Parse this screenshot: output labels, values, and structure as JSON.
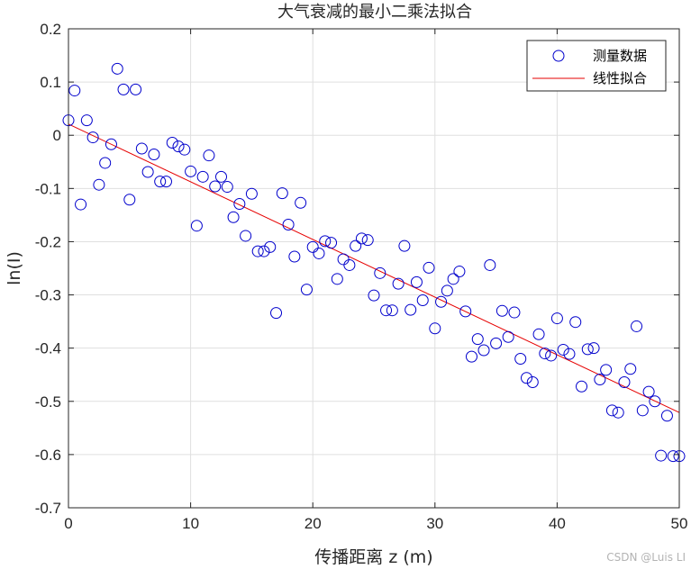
{
  "chart_data": {
    "type": "scatter",
    "title": "大气衰减的最小二乘法拟合",
    "xlabel": "传播距离 z (m)",
    "ylabel": "ln(I)",
    "xlim": [
      0,
      50
    ],
    "ylim": [
      -0.7,
      0.2
    ],
    "xticks": [
      0,
      10,
      20,
      30,
      40,
      50
    ],
    "yticks": [
      0.2,
      0.1,
      0,
      -0.1,
      -0.2,
      -0.3,
      -0.4,
      -0.5,
      -0.6,
      -0.7
    ],
    "xtick_labels": [
      "0",
      "10",
      "20",
      "30",
      "40",
      "50"
    ],
    "ytick_labels": [
      "0.2",
      "0.1",
      "0",
      "-0.1",
      "-0.2",
      "-0.3",
      "-0.4",
      "-0.5",
      "-0.6",
      "-0.7"
    ],
    "grid": true,
    "legend_position": "top-right",
    "series": [
      {
        "name": "测量数据",
        "kind": "scatter",
        "marker": "circle",
        "color": "#0000cc",
        "x": [
          0.0,
          0.5,
          1.0,
          1.5,
          2.0,
          2.5,
          3.0,
          3.5,
          4.0,
          4.5,
          5.0,
          5.5,
          6.0,
          6.5,
          7.0,
          7.5,
          8.0,
          8.5,
          9.0,
          9.5,
          10.0,
          10.5,
          11.0,
          11.5,
          12.0,
          12.5,
          13.0,
          13.5,
          14.0,
          14.5,
          15.0,
          15.5,
          16.0,
          16.5,
          17.0,
          17.5,
          18.0,
          18.5,
          19.0,
          19.5,
          20.0,
          20.5,
          21.0,
          21.5,
          22.0,
          22.5,
          23.0,
          23.5,
          24.0,
          24.5,
          25.0,
          25.5,
          26.0,
          26.5,
          27.0,
          27.5,
          28.0,
          28.5,
          29.0,
          29.5,
          30.0,
          30.5,
          31.0,
          31.5,
          32.0,
          32.5,
          33.0,
          33.5,
          34.0,
          34.5,
          35.0,
          35.5,
          36.0,
          36.5,
          37.0,
          37.5,
          38.0,
          38.5,
          39.0,
          39.5,
          40.0,
          40.5,
          41.0,
          41.5,
          42.0,
          42.5,
          43.0,
          43.5,
          44.0,
          44.5,
          45.0,
          45.5,
          46.0,
          46.5,
          47.0,
          47.5,
          48.0,
          48.5,
          49.0,
          49.5,
          50.0
        ],
        "y": [
          0.028,
          0.084,
          -0.13,
          0.028,
          -0.004,
          -0.093,
          -0.052,
          -0.017,
          0.125,
          0.086,
          -0.121,
          0.086,
          -0.025,
          -0.069,
          -0.036,
          -0.087,
          -0.087,
          -0.014,
          -0.021,
          -0.027,
          -0.068,
          -0.17,
          -0.078,
          -0.038,
          -0.096,
          -0.078,
          -0.097,
          -0.154,
          -0.129,
          -0.189,
          -0.11,
          -0.218,
          -0.218,
          -0.21,
          -0.334,
          -0.109,
          -0.168,
          -0.228,
          -0.127,
          -0.29,
          -0.21,
          -0.222,
          -0.199,
          -0.202,
          -0.27,
          -0.233,
          -0.244,
          -0.208,
          -0.194,
          -0.197,
          -0.301,
          -0.259,
          -0.329,
          -0.329,
          -0.279,
          -0.208,
          -0.328,
          -0.276,
          -0.31,
          -0.249,
          -0.363,
          -0.313,
          -0.292,
          -0.27,
          -0.256,
          -0.331,
          -0.416,
          -0.383,
          -0.404,
          -0.244,
          -0.391,
          -0.33,
          -0.379,
          -0.333,
          -0.42,
          -0.456,
          -0.464,
          -0.374,
          -0.41,
          -0.414,
          -0.344,
          -0.403,
          -0.411,
          -0.351,
          -0.472,
          -0.402,
          -0.4,
          -0.459,
          -0.441,
          -0.517,
          -0.521,
          -0.464,
          -0.439,
          -0.359,
          -0.517,
          -0.482,
          -0.5,
          -0.602,
          -0.527,
          -0.603,
          -0.603
        ]
      },
      {
        "name": "线性拟合",
        "kind": "line",
        "color": "#e60000",
        "x": [
          0,
          50
        ],
        "y": [
          0.021,
          -0.521
        ]
      }
    ]
  },
  "watermark": "CSDN @Luis LI"
}
